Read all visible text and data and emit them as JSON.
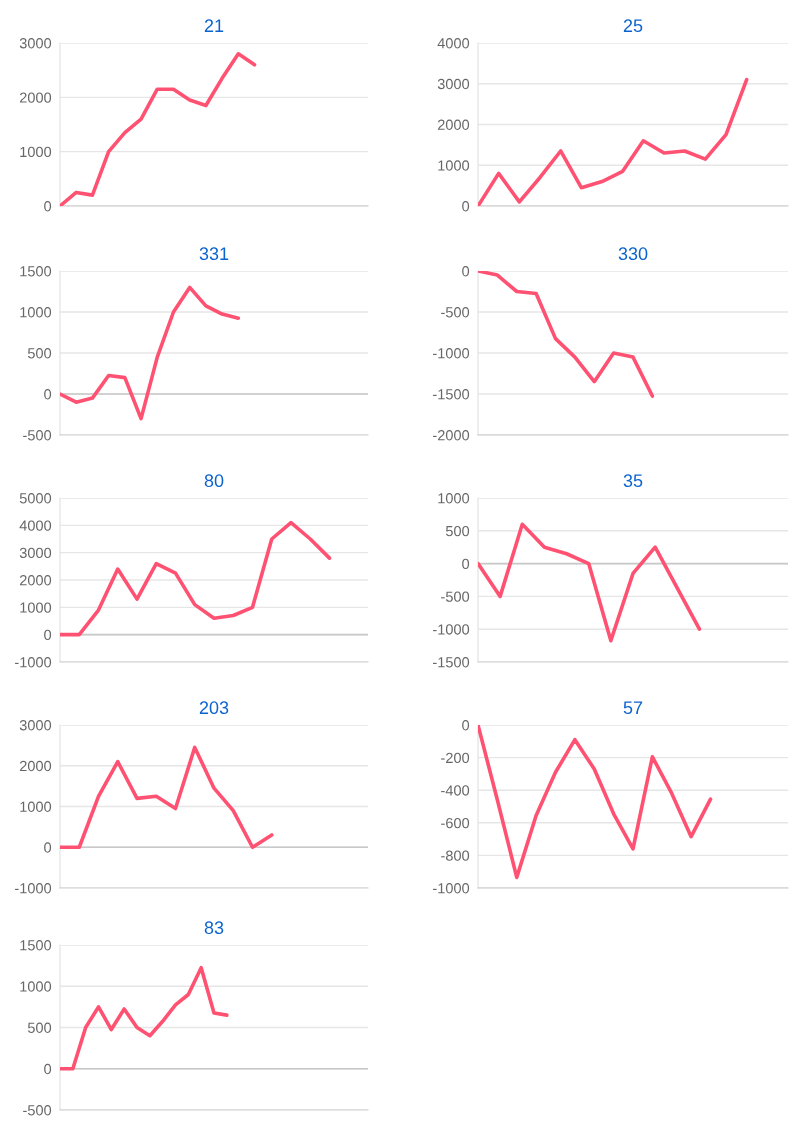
{
  "chart_data": [
    {
      "type": "line",
      "title": "21",
      "categories": [
        null,
        null,
        null,
        null,
        null,
        null,
        null,
        null,
        null,
        null,
        null,
        null,
        null,
        null,
        null,
        null,
        null,
        null,
        null,
        null
      ],
      "series": [
        {
          "color": "#ff5272",
          "values": [
            0,
            250,
            200,
            1000,
            1350,
            1600,
            2150,
            2150,
            1950,
            1850,
            2350,
            2800,
            2600,
            null,
            null,
            null,
            null,
            null,
            null,
            null
          ]
        }
      ],
      "ylim": [
        0,
        3000
      ],
      "yticks": [
        0,
        1000,
        2000,
        3000
      ],
      "grid": "y",
      "tick_labels": "y",
      "marker": "none",
      "line_style": "solid"
    },
    {
      "type": "line",
      "title": "25",
      "categories": [
        null,
        null,
        null,
        null,
        null,
        null,
        null,
        null,
        null,
        null,
        null,
        null,
        null,
        null,
        null,
        null
      ],
      "series": [
        {
          "color": "#ff5272",
          "values": [
            0,
            800,
            100,
            700,
            1350,
            450,
            600,
            850,
            1600,
            1300,
            1350,
            1150,
            1750,
            3100,
            null,
            null
          ]
        }
      ],
      "ylim": [
        0,
        4000
      ],
      "yticks": [
        0,
        1000,
        2000,
        3000,
        4000
      ],
      "grid": "y",
      "tick_labels": "y",
      "marker": "none",
      "line_style": "solid"
    },
    {
      "type": "line",
      "title": "331",
      "categories": [
        null,
        null,
        null,
        null,
        null,
        null,
        null,
        null,
        null,
        null,
        null,
        null,
        null,
        null,
        null,
        null,
        null,
        null,
        null,
        null
      ],
      "series": [
        {
          "color": "#ff5272",
          "values": [
            0,
            -100,
            -50,
            225,
            200,
            -300,
            450,
            1000,
            1300,
            1075,
            975,
            925,
            null,
            null,
            null,
            null,
            null,
            null,
            null,
            null
          ]
        }
      ],
      "ylim": [
        -500,
        1500
      ],
      "yticks": [
        -500,
        0,
        500,
        1000,
        1500
      ],
      "grid": "y",
      "tick_labels": "y",
      "marker": "none",
      "line_style": "solid"
    },
    {
      "type": "line",
      "title": "330",
      "categories": [
        null,
        null,
        null,
        null,
        null,
        null,
        null,
        null,
        null,
        null,
        null,
        null,
        null,
        null,
        null,
        null,
        null
      ],
      "series": [
        {
          "color": "#ff5272",
          "values": [
            0,
            -50,
            -250,
            -275,
            -825,
            -1050,
            -1350,
            -1000,
            -1050,
            -1525,
            null,
            null,
            null,
            null,
            null,
            null,
            null
          ]
        }
      ],
      "ylim": [
        -2000,
        0
      ],
      "yticks": [
        -2000,
        -1500,
        -1000,
        -500,
        0
      ],
      "grid": "y",
      "tick_labels": "y",
      "marker": "none",
      "line_style": "solid"
    },
    {
      "type": "line",
      "title": "80",
      "categories": [
        null,
        null,
        null,
        null,
        null,
        null,
        null,
        null,
        null,
        null,
        null,
        null,
        null,
        null,
        null,
        null,
        null
      ],
      "series": [
        {
          "color": "#ff5272",
          "values": [
            0,
            0,
            900,
            2400,
            1300,
            2600,
            2250,
            1100,
            600,
            700,
            1000,
            3500,
            4100,
            3500,
            2800,
            null,
            null
          ]
        }
      ],
      "ylim": [
        -1000,
        5000
      ],
      "yticks": [
        -1000,
        0,
        1000,
        2000,
        3000,
        4000,
        5000
      ],
      "grid": "y",
      "tick_labels": "y",
      "marker": "none",
      "line_style": "solid"
    },
    {
      "type": "line",
      "title": "35",
      "categories": [
        null,
        null,
        null,
        null,
        null,
        null,
        null,
        null,
        null,
        null,
        null,
        null,
        null,
        null,
        null
      ],
      "series": [
        {
          "color": "#ff5272",
          "values": [
            0,
            -500,
            600,
            250,
            150,
            0,
            -1175,
            -150,
            250,
            -375,
            -1000,
            null,
            null,
            null,
            null
          ]
        }
      ],
      "ylim": [
        -1500,
        1000
      ],
      "yticks": [
        -1500,
        -1000,
        -500,
        0,
        500,
        1000
      ],
      "grid": "y",
      "tick_labels": "y",
      "marker": "none",
      "line_style": "solid"
    },
    {
      "type": "line",
      "title": "203",
      "categories": [
        null,
        null,
        null,
        null,
        null,
        null,
        null,
        null,
        null,
        null,
        null,
        null,
        null,
        null,
        null,
        null,
        null
      ],
      "series": [
        {
          "color": "#ff5272",
          "values": [
            0,
            0,
            1250,
            2100,
            1200,
            1250,
            950,
            2450,
            1450,
            900,
            0,
            300,
            null,
            null,
            null,
            null,
            null
          ]
        }
      ],
      "ylim": [
        -1000,
        3000
      ],
      "yticks": [
        -1000,
        0,
        1000,
        2000,
        3000
      ],
      "grid": "y",
      "tick_labels": "y",
      "marker": "none",
      "line_style": "solid"
    },
    {
      "type": "line",
      "title": "57",
      "categories": [
        null,
        null,
        null,
        null,
        null,
        null,
        null,
        null,
        null,
        null,
        null,
        null,
        null,
        null,
        null,
        null,
        null
      ],
      "series": [
        {
          "color": "#ff5272",
          "values": [
            0,
            -460,
            -935,
            -555,
            -290,
            -90,
            -270,
            -545,
            -760,
            -195,
            -420,
            -685,
            -455,
            null,
            null,
            null,
            null
          ]
        }
      ],
      "ylim": [
        -1000,
        0
      ],
      "yticks": [
        -1000,
        -800,
        -600,
        -400,
        -200,
        0
      ],
      "grid": "y",
      "tick_labels": "y",
      "marker": "none",
      "line_style": "solid"
    },
    {
      "type": "line",
      "title": "83",
      "categories": [
        null,
        null,
        null,
        null,
        null,
        null,
        null,
        null,
        null,
        null,
        null,
        null,
        null,
        null,
        null,
        null,
        null,
        null,
        null,
        null,
        null,
        null,
        null,
        null,
        null
      ],
      "series": [
        {
          "color": "#ff5272",
          "values": [
            0,
            0,
            500,
            750,
            475,
            725,
            500,
            400,
            575,
            775,
            900,
            1225,
            675,
            650,
            null,
            null,
            null,
            null,
            null,
            null,
            null,
            null,
            null,
            null,
            null
          ]
        }
      ],
      "ylim": [
        -500,
        1500
      ],
      "yticks": [
        -500,
        0,
        500,
        1000,
        1500
      ],
      "grid": "y",
      "tick_labels": "y",
      "marker": "none",
      "line_style": "solid"
    }
  ]
}
